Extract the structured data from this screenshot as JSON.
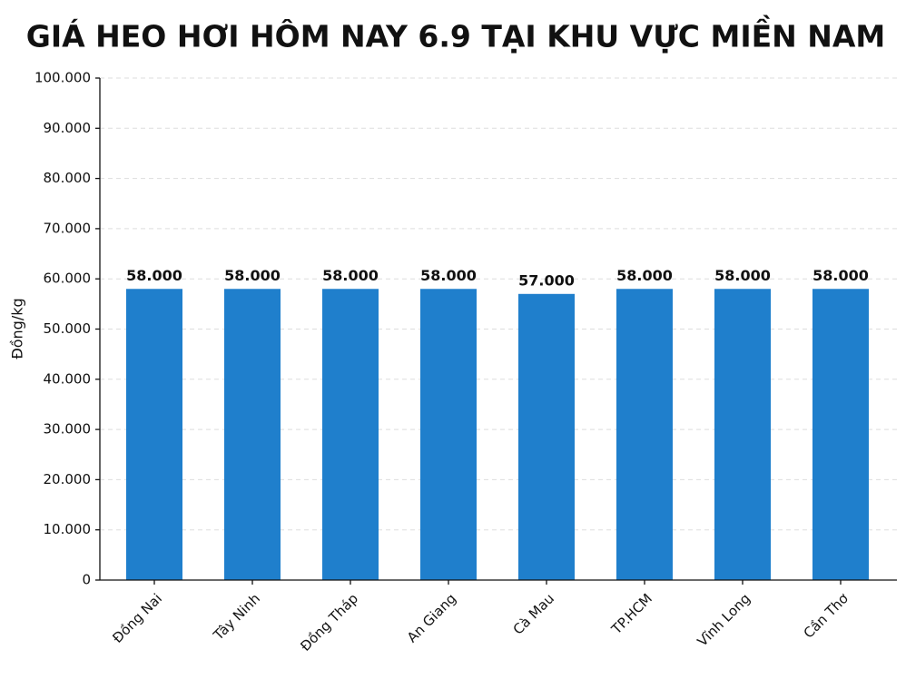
{
  "chart_data": {
    "type": "bar",
    "title": "GIÁ HEO HƠI HÔM NAY 6.9 TẠI KHU VỰC MIỀN NAM",
    "y_label": "Đồng/kg",
    "categories": [
      "Đồng Nai",
      "Tây Ninh",
      "Đồng Tháp",
      "An Giang",
      "Cà Mau",
      "TP.HCM",
      "Vĩnh Long",
      "Cần Thơ"
    ],
    "values": [
      58000,
      58000,
      58000,
      58000,
      57000,
      58000,
      58000,
      58000
    ],
    "value_labels": [
      "58.000",
      "58.000",
      "58.000",
      "58.000",
      "57.000",
      "58.000",
      "58.000",
      "58.000"
    ],
    "color": "#1f7fcc",
    "ylim": [
      0,
      100000
    ],
    "yticks": [
      0,
      {
        "value": 10000,
        "label": "10.000"
      },
      {
        "value": 20000,
        "label": "20.000"
      },
      {
        "value": 30000,
        "label": "30.000"
      },
      {
        "value": 40000,
        "label": "40.000"
      },
      {
        "value": 50000,
        "label": "50.000"
      },
      {
        "value": 60000,
        "label": "60.000"
      },
      {
        "value": 70000,
        "label": "70.000"
      },
      {
        "value": 80000,
        "label": "80.000"
      },
      {
        "value": 90000,
        "label": "90.000"
      },
      {
        "value": 100000,
        "label": "100.000"
      }
    ],
    "grid": true
  }
}
